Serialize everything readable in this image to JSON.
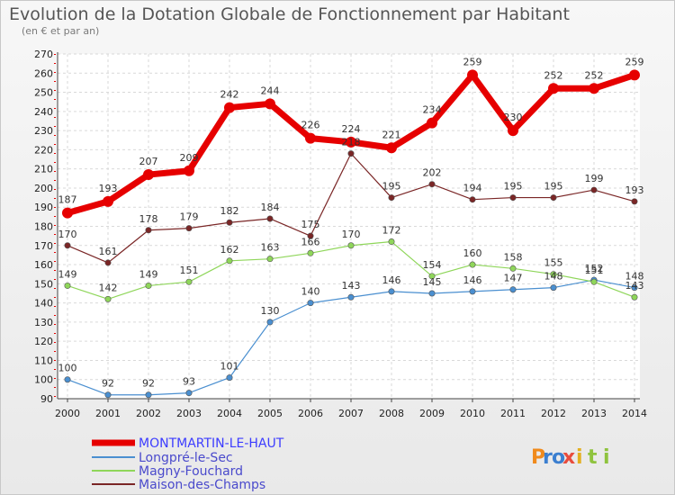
{
  "chart_data": {
    "type": "line",
    "title": "Evolution de la Dotation Globale de Fonctionnement par Habitant",
    "subtitle": "(en € et par an)",
    "xlabel": "",
    "ylabel": "",
    "ylim": [
      90,
      270
    ],
    "yticks": [
      "90",
      "100",
      "110",
      "120",
      "130",
      "140",
      "150",
      "160",
      "170",
      "180",
      "190",
      "200",
      "210",
      "220",
      "230",
      "240",
      "250",
      "260",
      "270"
    ],
    "categories": [
      "2000",
      "2001",
      "2002",
      "2003",
      "2004",
      "2005",
      "2006",
      "2007",
      "2008",
      "2009",
      "2010",
      "2011",
      "2012",
      "2013",
      "2014"
    ],
    "series": [
      {
        "name": "MONTMARTIN-LE-HAUT",
        "color": "#e60000",
        "values": [
          187,
          193,
          207,
          209,
          242,
          244,
          226,
          224,
          221,
          234,
          259,
          230,
          252,
          252,
          259
        ]
      },
      {
        "name": "Longpré-le-Sec",
        "color": "#4a8fd0",
        "values": [
          100,
          92,
          92,
          93,
          101,
          130,
          140,
          143,
          146,
          145,
          146,
          147,
          148,
          152,
          148
        ]
      },
      {
        "name": "Magny-Fouchard",
        "color": "#8fd65a",
        "values": [
          149,
          142,
          149,
          151,
          162,
          163,
          166,
          170,
          172,
          154,
          160,
          158,
          155,
          151,
          143
        ]
      },
      {
        "name": "Maison-des-Champs",
        "color": "#7a2626",
        "values": [
          170,
          161,
          178,
          179,
          182,
          184,
          175,
          218,
          195,
          202,
          194,
          195,
          195,
          199,
          193
        ]
      }
    ],
    "legend_position": "bottom-left"
  },
  "legend_colors": {
    "MONTMARTIN-LE-HAUT": "#3c3cff",
    "others": "#4a4acc"
  },
  "watermark": "Proxiti"
}
